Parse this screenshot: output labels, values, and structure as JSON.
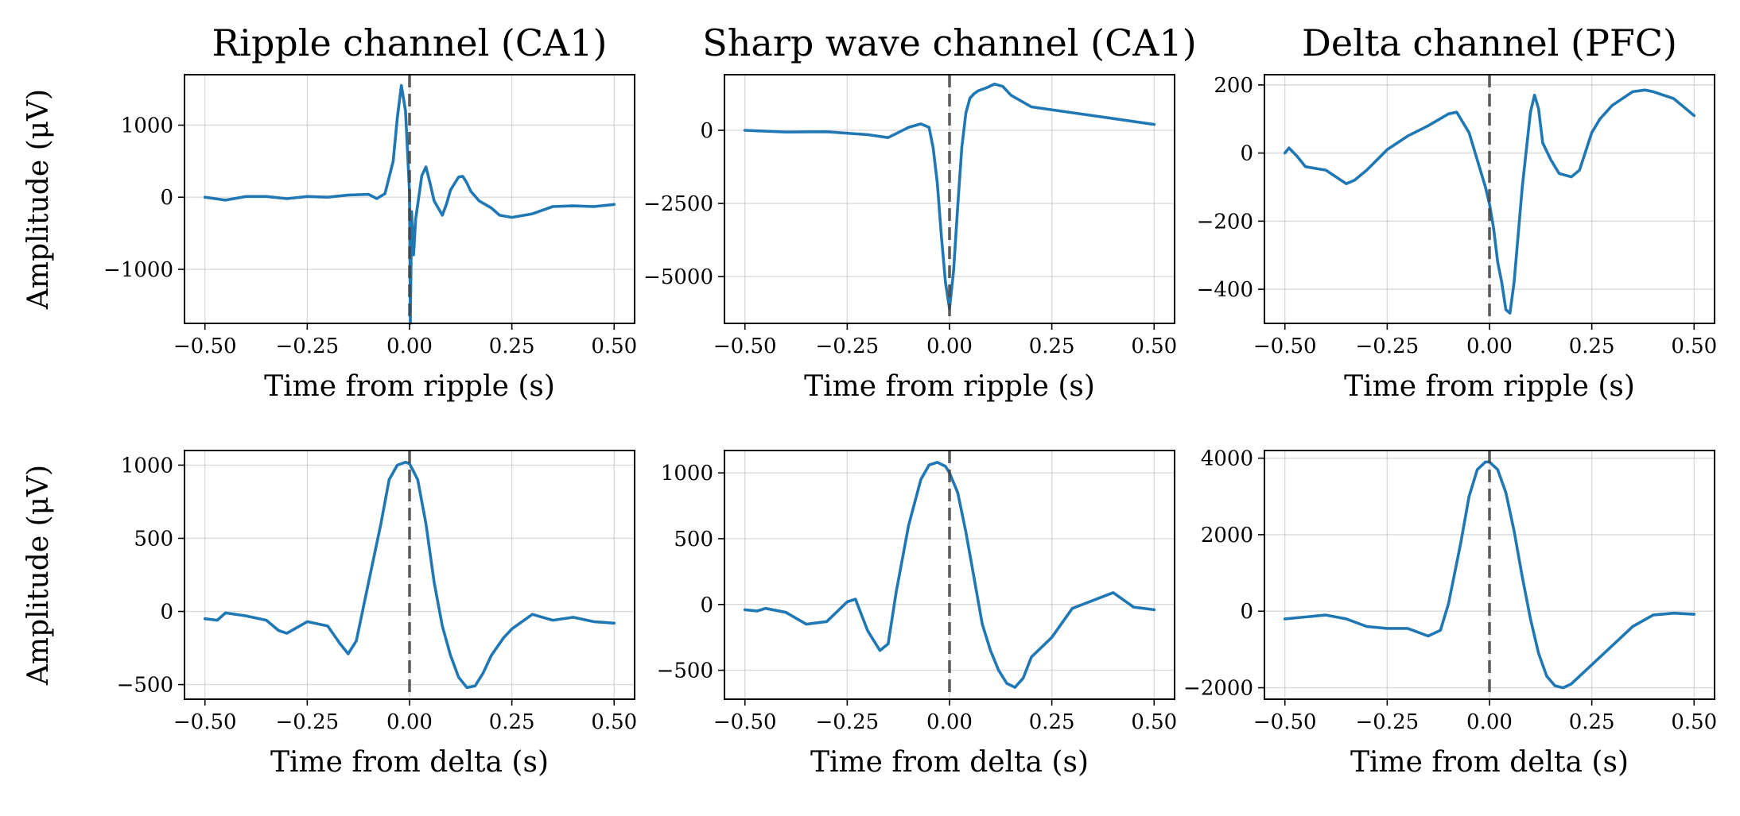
{
  "colors": {
    "trace": "#1f77b4",
    "zero_line": "#444444"
  },
  "chart_data": [
    {
      "type": "line",
      "row": 0,
      "col": 0,
      "title": "Ripple channel (CA1)",
      "xlabel": "Time from ripple (s)",
      "ylabel": "Amplitude (μV)",
      "xlim": [
        -0.55,
        0.55
      ],
      "ylim": [
        -1750,
        1700
      ],
      "xticks": [
        -0.5,
        -0.25,
        0,
        0.25,
        0.5
      ],
      "xtick_labels": [
        "−0.50",
        "−0.25",
        "0.00",
        "0.25",
        "0.50"
      ],
      "yticks": [
        -1000,
        0,
        1000
      ],
      "ytick_labels": [
        "−1000",
        "0",
        "1000"
      ],
      "vline_x": 0,
      "x": [
        -0.5,
        -0.45,
        -0.4,
        -0.35,
        -0.3,
        -0.25,
        -0.2,
        -0.15,
        -0.1,
        -0.08,
        -0.06,
        -0.04,
        -0.03,
        -0.02,
        -0.01,
        0.0,
        0.002,
        0.005,
        0.01,
        0.015,
        0.02,
        0.03,
        0.04,
        0.05,
        0.06,
        0.07,
        0.08,
        0.09,
        0.1,
        0.12,
        0.13,
        0.14,
        0.15,
        0.17,
        0.2,
        0.22,
        0.25,
        0.3,
        0.35,
        0.4,
        0.45,
        0.5
      ],
      "y": [
        0,
        -40,
        10,
        10,
        -20,
        10,
        0,
        30,
        40,
        -20,
        50,
        500,
        1100,
        1550,
        1200,
        60,
        -1750,
        -200,
        -800,
        -300,
        -100,
        300,
        420,
        200,
        -50,
        -150,
        -250,
        -100,
        100,
        280,
        290,
        200,
        80,
        -50,
        -150,
        -250,
        -280,
        -230,
        -130,
        -120,
        -130,
        -100
      ]
    },
    {
      "type": "line",
      "row": 0,
      "col": 1,
      "title": "Sharp wave channel (CA1)",
      "xlabel": "Time from ripple (s)",
      "ylabel": "",
      "xlim": [
        -0.55,
        0.55
      ],
      "ylim": [
        -6600,
        1900
      ],
      "xticks": [
        -0.5,
        -0.25,
        0,
        0.25,
        0.5
      ],
      "xtick_labels": [
        "−0.50",
        "−0.25",
        "0.00",
        "0.25",
        "0.50"
      ],
      "yticks": [
        -5000,
        -2500,
        0
      ],
      "ytick_labels": [
        "−5000",
        "−2500",
        "0"
      ],
      "vline_x": 0,
      "x": [
        -0.5,
        -0.4,
        -0.3,
        -0.2,
        -0.15,
        -0.1,
        -0.07,
        -0.05,
        -0.04,
        -0.03,
        -0.02,
        -0.01,
        0.0,
        0.01,
        0.02,
        0.03,
        0.04,
        0.05,
        0.06,
        0.07,
        0.09,
        0.11,
        0.13,
        0.15,
        0.2,
        0.3,
        0.4,
        0.5
      ],
      "y": [
        0,
        -60,
        -50,
        -150,
        -250,
        100,
        220,
        100,
        -600,
        -1800,
        -3600,
        -5200,
        -6100,
        -4800,
        -2600,
        -600,
        600,
        1100,
        1250,
        1350,
        1450,
        1580,
        1500,
        1200,
        800,
        600,
        400,
        200
      ]
    },
    {
      "type": "line",
      "row": 0,
      "col": 2,
      "title": "Delta channel (PFC)",
      "xlabel": "Time from ripple (s)",
      "ylabel": "",
      "xlim": [
        -0.55,
        0.55
      ],
      "ylim": [
        -500,
        230
      ],
      "xticks": [
        -0.5,
        -0.25,
        0,
        0.25,
        0.5
      ],
      "xtick_labels": [
        "−0.50",
        "−0.25",
        "0.00",
        "0.25",
        "0.50"
      ],
      "yticks": [
        -400,
        -200,
        0,
        200
      ],
      "ytick_labels": [
        "−400",
        "−200",
        "0",
        "200"
      ],
      "vline_x": 0,
      "x": [
        -0.5,
        -0.49,
        -0.47,
        -0.45,
        -0.4,
        -0.35,
        -0.33,
        -0.3,
        -0.25,
        -0.2,
        -0.15,
        -0.1,
        -0.08,
        -0.05,
        -0.03,
        -0.01,
        0.0,
        0.01,
        0.02,
        0.03,
        0.04,
        0.05,
        0.06,
        0.08,
        0.1,
        0.11,
        0.12,
        0.13,
        0.15,
        0.17,
        0.2,
        0.22,
        0.25,
        0.27,
        0.3,
        0.35,
        0.38,
        0.4,
        0.45,
        0.48,
        0.5
      ],
      "y": [
        0,
        15,
        -10,
        -40,
        -50,
        -90,
        -80,
        -50,
        10,
        50,
        80,
        115,
        120,
        60,
        -20,
        -100,
        -150,
        -220,
        -320,
        -380,
        -460,
        -470,
        -380,
        -100,
        120,
        170,
        130,
        30,
        -20,
        -60,
        -70,
        -50,
        60,
        100,
        140,
        180,
        185,
        180,
        160,
        130,
        110
      ]
    },
    {
      "type": "line",
      "row": 1,
      "col": 0,
      "title": "",
      "xlabel": "Time from delta (s)",
      "ylabel": "Amplitude (μV)",
      "xlim": [
        -0.55,
        0.55
      ],
      "ylim": [
        -600,
        1100
      ],
      "xticks": [
        -0.5,
        -0.25,
        0,
        0.25,
        0.5
      ],
      "xtick_labels": [
        "−0.50",
        "−0.25",
        "0.00",
        "0.25",
        "0.50"
      ],
      "yticks": [
        -500,
        0,
        500,
        1000
      ],
      "ytick_labels": [
        "−500",
        "0",
        "500",
        "1000"
      ],
      "vline_x": 0,
      "x": [
        -0.5,
        -0.47,
        -0.45,
        -0.4,
        -0.35,
        -0.32,
        -0.3,
        -0.25,
        -0.2,
        -0.17,
        -0.15,
        -0.13,
        -0.1,
        -0.07,
        -0.05,
        -0.03,
        -0.01,
        0.0,
        0.02,
        0.04,
        0.06,
        0.08,
        0.1,
        0.12,
        0.14,
        0.16,
        0.18,
        0.2,
        0.23,
        0.25,
        0.3,
        0.35,
        0.4,
        0.45,
        0.5
      ],
      "y": [
        -50,
        -60,
        -10,
        -30,
        -60,
        -130,
        -150,
        -70,
        -100,
        -220,
        -290,
        -200,
        200,
        600,
        900,
        1000,
        1020,
        1010,
        900,
        600,
        200,
        -100,
        -300,
        -450,
        -520,
        -510,
        -420,
        -300,
        -180,
        -120,
        -20,
        -60,
        -40,
        -70,
        -80
      ]
    },
    {
      "type": "line",
      "row": 1,
      "col": 1,
      "title": "",
      "xlabel": "Time from delta (s)",
      "ylabel": "",
      "xlim": [
        -0.55,
        0.55
      ],
      "ylim": [
        -720,
        1170
      ],
      "xticks": [
        -0.5,
        -0.25,
        0,
        0.25,
        0.5
      ],
      "xtick_labels": [
        "−0.50",
        "−0.25",
        "0.00",
        "0.25",
        "0.50"
      ],
      "yticks": [
        -500,
        0,
        500,
        1000
      ],
      "ytick_labels": [
        "−500",
        "0",
        "500",
        "1000"
      ],
      "vline_x": 0,
      "x": [
        -0.5,
        -0.47,
        -0.45,
        -0.4,
        -0.35,
        -0.3,
        -0.25,
        -0.23,
        -0.2,
        -0.17,
        -0.15,
        -0.13,
        -0.1,
        -0.07,
        -0.05,
        -0.03,
        -0.01,
        0.0,
        0.02,
        0.04,
        0.06,
        0.08,
        0.1,
        0.12,
        0.14,
        0.16,
        0.18,
        0.2,
        0.25,
        0.3,
        0.35,
        0.4,
        0.45,
        0.5
      ],
      "y": [
        -40,
        -50,
        -30,
        -60,
        -150,
        -130,
        20,
        40,
        -200,
        -350,
        -300,
        100,
        600,
        950,
        1060,
        1080,
        1050,
        1000,
        850,
        550,
        200,
        -150,
        -350,
        -500,
        -600,
        -630,
        -560,
        -400,
        -250,
        -30,
        30,
        90,
        -20,
        -40
      ]
    },
    {
      "type": "line",
      "row": 1,
      "col": 2,
      "title": "",
      "xlabel": "Time from delta (s)",
      "ylabel": "",
      "xlim": [
        -0.55,
        0.55
      ],
      "ylim": [
        -2300,
        4200
      ],
      "xticks": [
        -0.5,
        -0.25,
        0,
        0.25,
        0.5
      ],
      "xtick_labels": [
        "−0.50",
        "−0.25",
        "0.00",
        "0.25",
        "0.50"
      ],
      "yticks": [
        -2000,
        0,
        2000,
        4000
      ],
      "ytick_labels": [
        "−2000",
        "0",
        "2000",
        "4000"
      ],
      "vline_x": 0,
      "x": [
        -0.5,
        -0.45,
        -0.4,
        -0.35,
        -0.3,
        -0.25,
        -0.2,
        -0.15,
        -0.12,
        -0.1,
        -0.07,
        -0.05,
        -0.03,
        -0.01,
        0.0,
        0.02,
        0.04,
        0.06,
        0.08,
        0.1,
        0.12,
        0.14,
        0.16,
        0.18,
        0.2,
        0.25,
        0.3,
        0.35,
        0.4,
        0.45,
        0.5
      ],
      "y": [
        -200,
        -150,
        -100,
        -200,
        -400,
        -450,
        -450,
        -650,
        -500,
        200,
        1800,
        3000,
        3700,
        3900,
        3900,
        3700,
        3100,
        2100,
        900,
        -200,
        -1100,
        -1700,
        -1950,
        -2000,
        -1900,
        -1400,
        -900,
        -400,
        -100,
        -50,
        -80
      ]
    }
  ]
}
